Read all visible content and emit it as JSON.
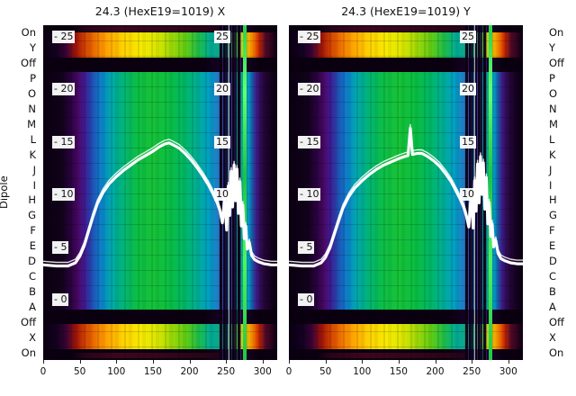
{
  "figure": {
    "background": "#ffffff",
    "ylabel": "Dipole",
    "row_labels_left": [
      "On",
      "Y",
      "Off",
      "P",
      "O",
      "N",
      "M",
      "L",
      "K",
      "J",
      "I",
      "H",
      "G",
      "F",
      "E",
      "D",
      "C",
      "B",
      "A",
      "Off",
      "X",
      "On"
    ],
    "row_labels_right": [
      "On",
      "Y",
      "Off",
      "P",
      "O",
      "N",
      "M",
      "L",
      "K",
      "J",
      "I",
      "H",
      "G",
      "F",
      "E",
      "D",
      "C",
      "B",
      "A",
      "Off",
      "X",
      "On"
    ]
  },
  "chart_data": [
    {
      "type": "heatmap",
      "title": "24.3 (HexE19=1019) X",
      "xlabel": "",
      "ylabel": "Dipole",
      "x_range": [
        0,
        320
      ],
      "x_ticks": [
        0,
        50,
        100,
        150,
        200,
        250,
        300
      ],
      "y_ticks": [
        25,
        20,
        15,
        10,
        5,
        0
      ],
      "y_ticks_right": [
        25,
        20,
        15,
        10
      ],
      "y_tick_prefix": "- ",
      "rows": [
        "On",
        "Y",
        "Off",
        "P",
        "O",
        "N",
        "M",
        "L",
        "K",
        "J",
        "I",
        "H",
        "G",
        "F",
        "E",
        "D",
        "C",
        "B",
        "A",
        "Off",
        "X",
        "On"
      ],
      "hot_band_rows": [
        "Y",
        "X"
      ],
      "dark_gap_rows": [
        "Off",
        "Off"
      ],
      "colormap_description": "spectral-like: black/purple edges, blue-cyan, green core; hot red-orange-yellow bands on Y and X rows",
      "noise_strip_x_range": [
        242,
        270
      ],
      "bright_green_line_x": 274,
      "overlay_profile": {
        "name": "white beam-profile trace",
        "color": "#ffffff",
        "points": [
          [
            0,
            3.4
          ],
          [
            18,
            3.3
          ],
          [
            34,
            3.3
          ],
          [
            44,
            3.6
          ],
          [
            50,
            4.2
          ],
          [
            56,
            5.2
          ],
          [
            62,
            6.6
          ],
          [
            68,
            8.0
          ],
          [
            74,
            9.2
          ],
          [
            82,
            10.3
          ],
          [
            90,
            11.1
          ],
          [
            100,
            11.8
          ],
          [
            110,
            12.4
          ],
          [
            120,
            12.9
          ],
          [
            130,
            13.4
          ],
          [
            140,
            13.8
          ],
          [
            150,
            14.2
          ],
          [
            158,
            14.6
          ],
          [
            166,
            14.9
          ],
          [
            172,
            15.0
          ],
          [
            178,
            14.8
          ],
          [
            186,
            14.5
          ],
          [
            194,
            14.0
          ],
          [
            202,
            13.4
          ],
          [
            210,
            12.7
          ],
          [
            218,
            11.9
          ],
          [
            226,
            11.0
          ],
          [
            232,
            10.2
          ],
          [
            238,
            9.3
          ],
          [
            242,
            8.5
          ],
          [
            245,
            7.4
          ],
          [
            248,
            9.7
          ],
          [
            251,
            6.7
          ],
          [
            253,
            10.9
          ],
          [
            255,
            8.1
          ],
          [
            257,
            12.3
          ],
          [
            259,
            8.9
          ],
          [
            261,
            12.9
          ],
          [
            263,
            9.5
          ],
          [
            265,
            12.5
          ],
          [
            267,
            8.3
          ],
          [
            269,
            11.3
          ],
          [
            271,
            7.1
          ],
          [
            273,
            9.1
          ],
          [
            275,
            5.9
          ],
          [
            277,
            7.1
          ],
          [
            279,
            4.9
          ],
          [
            282,
            5.5
          ],
          [
            285,
            4.3
          ],
          [
            289,
            3.9
          ],
          [
            294,
            3.7
          ],
          [
            302,
            3.5
          ],
          [
            312,
            3.4
          ],
          [
            320,
            3.4
          ]
        ]
      }
    },
    {
      "type": "heatmap",
      "title": "24.3 (HexE19=1019) Y",
      "xlabel": "",
      "ylabel": "Dipole",
      "x_range": [
        0,
        320
      ],
      "x_ticks": [
        0,
        50,
        100,
        150,
        200,
        250,
        300
      ],
      "y_ticks": [
        25,
        20,
        15,
        10,
        5,
        0
      ],
      "y_ticks_right": [
        25,
        20,
        15,
        10
      ],
      "y_tick_prefix": "- ",
      "rows": [
        "On",
        "Y",
        "Off",
        "P",
        "O",
        "N",
        "M",
        "L",
        "K",
        "J",
        "I",
        "H",
        "G",
        "F",
        "E",
        "D",
        "C",
        "B",
        "A",
        "Off",
        "X",
        "On"
      ],
      "hot_band_rows": [
        "Y",
        "X"
      ],
      "dark_gap_rows": [
        "Off",
        "Off"
      ],
      "colormap_description": "spectral-like: black/purple edges, blue-cyan, green core; hot red-orange-yellow bands on Y and X rows",
      "noise_strip_x_range": [
        242,
        270
      ],
      "bright_green_line_x": 274,
      "overlay_profile": {
        "name": "white beam-profile trace",
        "color": "#ffffff",
        "points": [
          [
            0,
            3.4
          ],
          [
            18,
            3.3
          ],
          [
            34,
            3.3
          ],
          [
            44,
            3.6
          ],
          [
            50,
            4.1
          ],
          [
            56,
            5.0
          ],
          [
            62,
            6.3
          ],
          [
            68,
            7.6
          ],
          [
            74,
            8.8
          ],
          [
            82,
            9.9
          ],
          [
            90,
            10.7
          ],
          [
            100,
            11.4
          ],
          [
            110,
            12.0
          ],
          [
            120,
            12.5
          ],
          [
            130,
            12.9
          ],
          [
            140,
            13.2
          ],
          [
            150,
            13.5
          ],
          [
            158,
            13.7
          ],
          [
            163,
            13.8
          ],
          [
            166,
            16.4
          ],
          [
            169,
            13.9
          ],
          [
            175,
            14.0
          ],
          [
            182,
            14.0
          ],
          [
            190,
            13.7
          ],
          [
            198,
            13.3
          ],
          [
            206,
            12.8
          ],
          [
            214,
            12.1
          ],
          [
            222,
            11.3
          ],
          [
            228,
            10.5
          ],
          [
            234,
            9.7
          ],
          [
            239,
            8.9
          ],
          [
            243,
            8.0
          ],
          [
            246,
            7.0
          ],
          [
            249,
            10.0
          ],
          [
            252,
            6.9
          ],
          [
            254,
            11.4
          ],
          [
            256,
            8.5
          ],
          [
            258,
            13.0
          ],
          [
            260,
            9.3
          ],
          [
            262,
            13.7
          ],
          [
            264,
            10.1
          ],
          [
            266,
            13.1
          ],
          [
            268,
            8.7
          ],
          [
            270,
            11.7
          ],
          [
            272,
            7.3
          ],
          [
            274,
            9.3
          ],
          [
            276,
            6.1
          ],
          [
            278,
            7.3
          ],
          [
            280,
            5.1
          ],
          [
            283,
            5.7
          ],
          [
            286,
            4.5
          ],
          [
            290,
            4.0
          ],
          [
            295,
            3.8
          ],
          [
            303,
            3.6
          ],
          [
            312,
            3.5
          ],
          [
            320,
            3.5
          ]
        ]
      }
    }
  ]
}
